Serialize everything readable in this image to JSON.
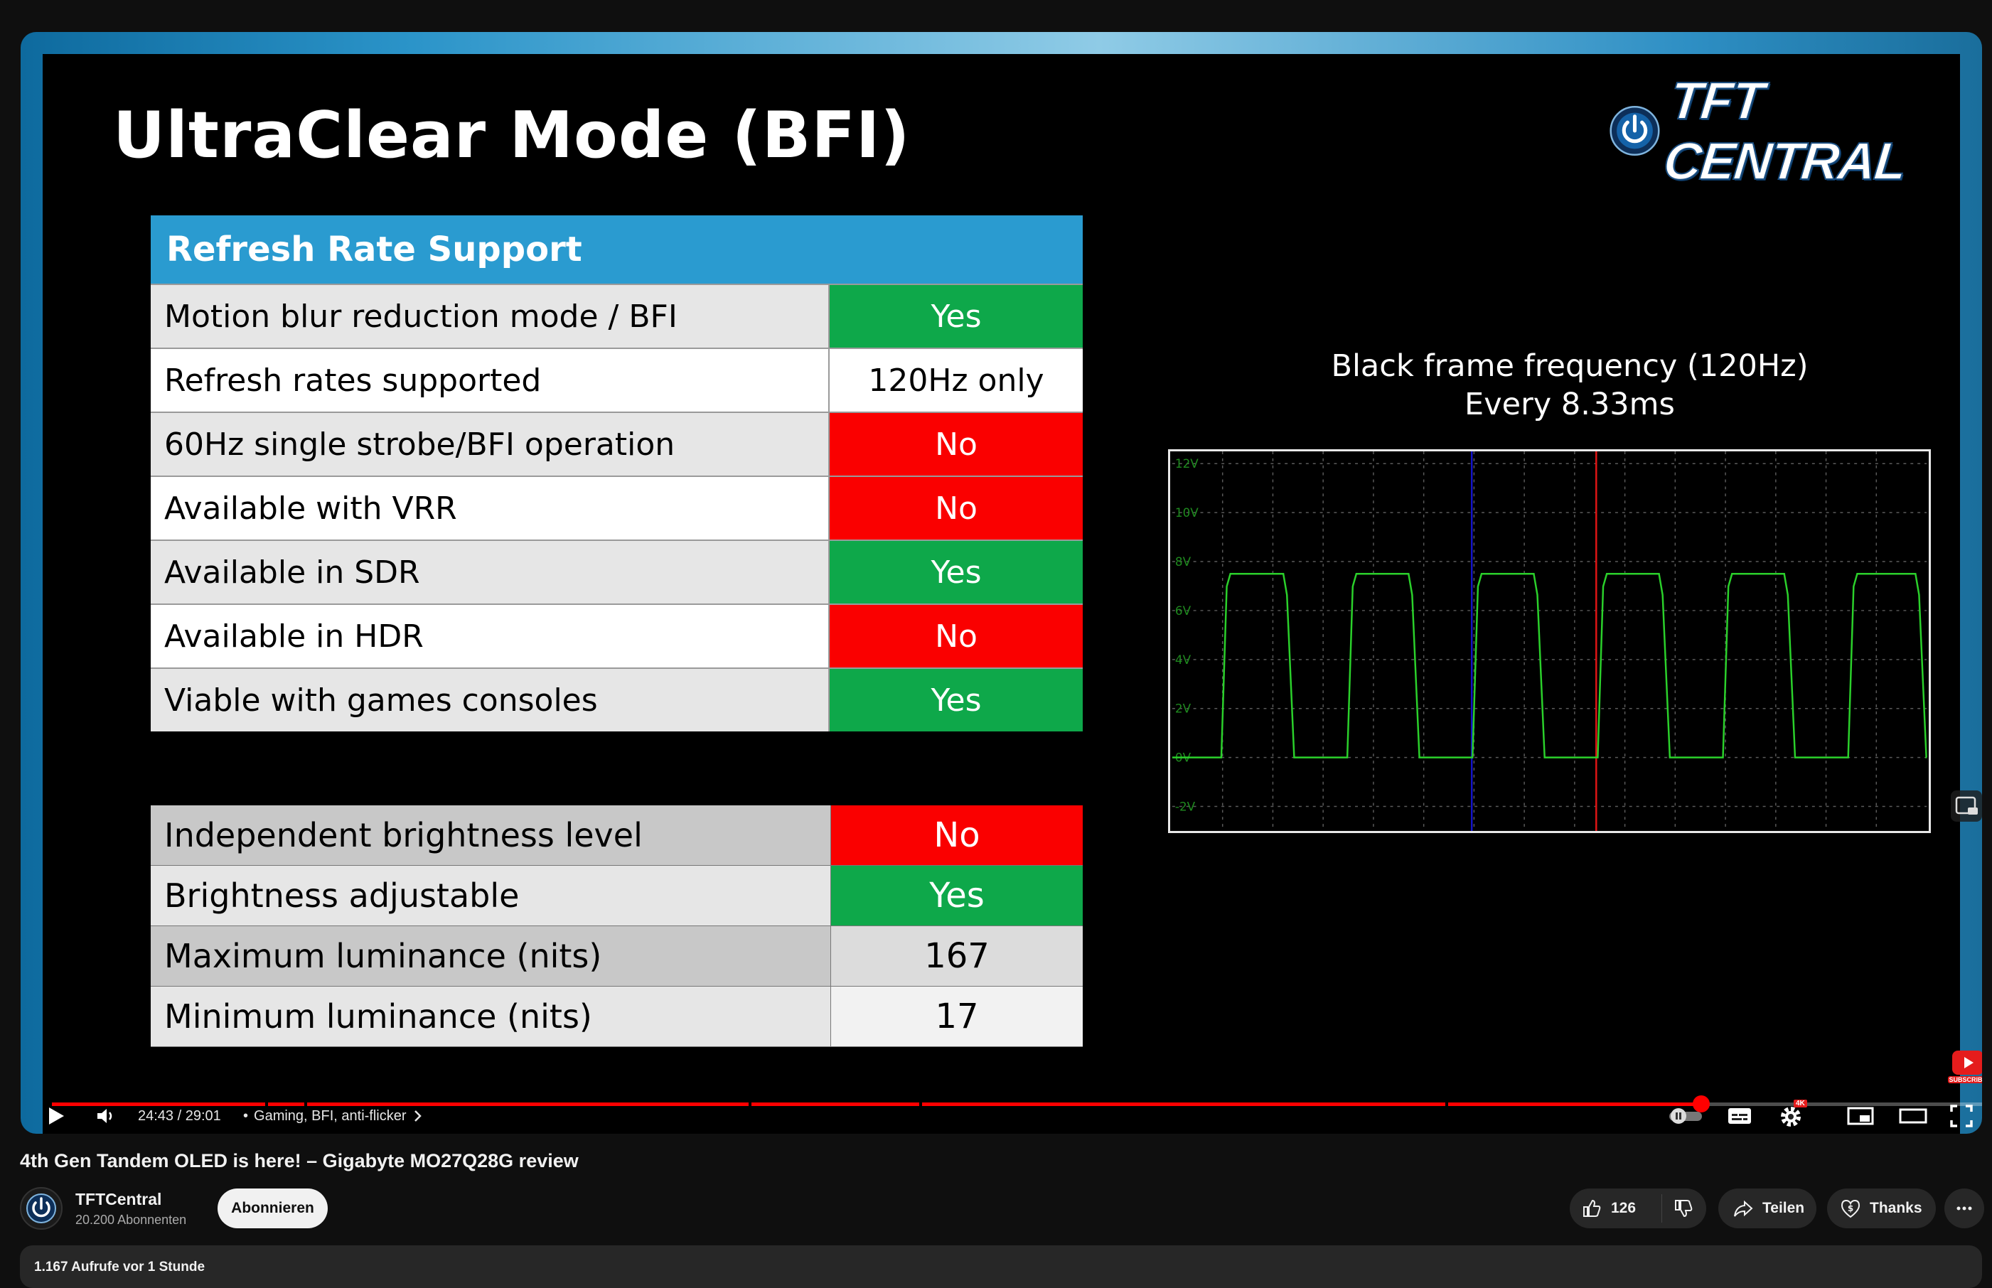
{
  "slide": {
    "title": "UltraClear Mode (BFI)",
    "logo_text": "TFT CENTRAL",
    "table1": {
      "header": "Refresh Rate Support",
      "rows": [
        {
          "label": "Motion blur reduction mode / BFI",
          "value": "Yes",
          "status": "green"
        },
        {
          "label": "Refresh rates supported",
          "value": "120Hz only",
          "status": "white"
        },
        {
          "label": "60Hz single strobe/BFI operation",
          "value": "No",
          "status": "red"
        },
        {
          "label": "Available with VRR",
          "value": "No",
          "status": "red"
        },
        {
          "label": "Available in SDR",
          "value": "Yes",
          "status": "green"
        },
        {
          "label": "Available in HDR",
          "value": "No",
          "status": "red"
        },
        {
          "label": "Viable with games consoles",
          "value": "Yes",
          "status": "green"
        }
      ]
    },
    "table2": {
      "rows": [
        {
          "label": "Independent brightness level",
          "value": "No",
          "status": "red"
        },
        {
          "label": "Brightness adjustable",
          "value": "Yes",
          "status": "green"
        },
        {
          "label": "Maximum luminance (nits)",
          "value": "167",
          "status": "lightgray"
        },
        {
          "label": "Minimum luminance (nits)",
          "value": "17",
          "status": "verylight"
        }
      ]
    },
    "scope": {
      "title_line1": "Black frame frequency (120Hz)",
      "title_line2": "Every 8.33ms",
      "y_ticks": [
        "12V",
        "10V",
        "8V",
        "6V",
        "4V",
        "2V",
        "0V",
        "-2V"
      ]
    }
  },
  "chart_data": {
    "type": "line",
    "title": "Black frame frequency (120Hz)",
    "subtitle": "Every 8.33ms",
    "ylim": [
      -3,
      12.5
    ],
    "yticks": [
      12,
      10,
      8,
      6,
      4,
      2,
      0,
      -2
    ],
    "series": [
      {
        "color": "#2bd12b",
        "pulses": [
          {
            "rise": 0.065,
            "fall": 0.152
          },
          {
            "rise": 0.232,
            "fall": 0.318
          },
          {
            "rise": 0.398,
            "fall": 0.484
          },
          {
            "rise": 0.564,
            "fall": 0.65
          },
          {
            "rise": 0.73,
            "fall": 0.816
          },
          {
            "rise": 0.896,
            "fall": 0.99
          }
        ],
        "high": 7.5,
        "low": 0
      }
    ],
    "cursors": [
      {
        "position": 0.397,
        "color": "#1414c8"
      },
      {
        "position": 0.562,
        "color": "#e01414"
      }
    ],
    "grid": true
  },
  "player": {
    "progress_fraction": 0.8483,
    "time": "24:43 / 29:01",
    "chapter": "Gaming, BFI, anti-flicker",
    "colors": {
      "progress": "#ff0000"
    },
    "hd_badge": "4K",
    "subscribe_badge": "SUBSCRIBE"
  },
  "video": {
    "title": "4th Gen Tandem OLED is here! – Gigabyte MO27Q28G review",
    "channel": "TFTCentral",
    "subscribers": "20.200 Abonnenten",
    "subscribe_label": "Abonnieren",
    "likes": "126",
    "share_label": "Teilen",
    "thanks_label": "Thanks",
    "views_line": "1.167 Aufrufe  vor 1 Stunde"
  }
}
